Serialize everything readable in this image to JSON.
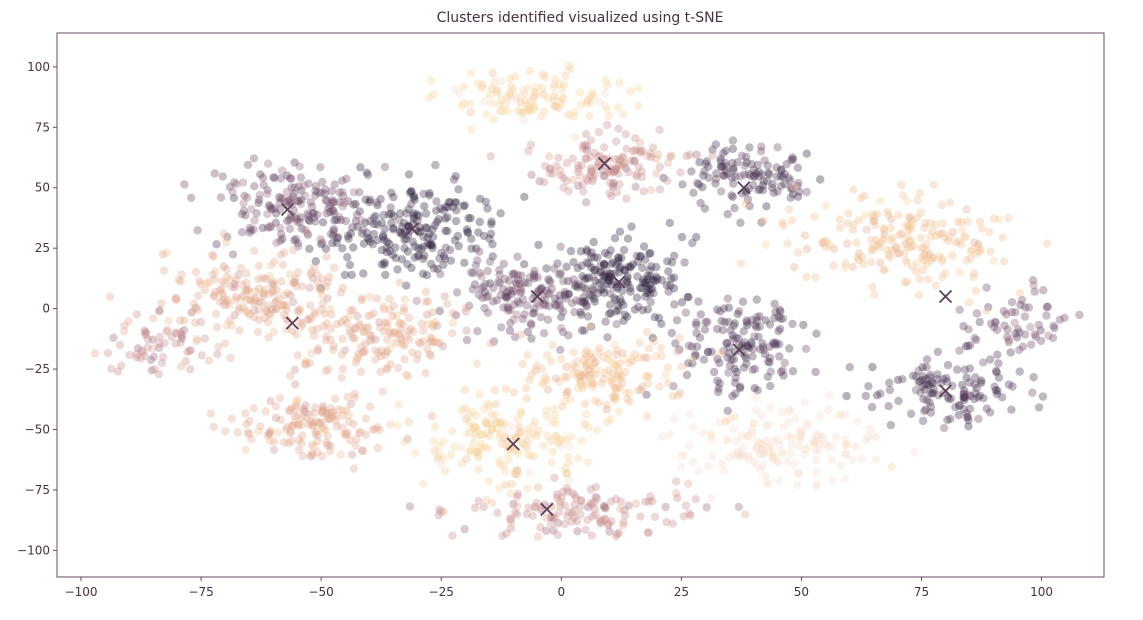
{
  "chart_data": {
    "type": "scatter",
    "title": "Clusters identified visualized using t-SNE",
    "xlabel": "",
    "ylabel": "",
    "xlim": [
      -105,
      113
    ],
    "ylim": [
      -111,
      114
    ],
    "xticks": [
      -100,
      -75,
      -50,
      -25,
      0,
      25,
      50,
      75,
      100
    ],
    "yticks": [
      100,
      75,
      50,
      25,
      0,
      -25,
      -50,
      -75,
      -100
    ],
    "xtick_labels": [
      "−100",
      "−75",
      "−50",
      "−25",
      "0",
      "25",
      "50",
      "75",
      "100"
    ],
    "ytick_labels": [
      "100",
      "75",
      "50",
      "25",
      "0",
      "−25",
      "−50",
      "−75",
      "−100"
    ],
    "grid": false,
    "legend": "none",
    "colors": {
      "axes": "#6b4a63",
      "text": "#4a2f45",
      "centroid_marker": "#5a4058",
      "palette": [
        "#2e1f3d",
        "#4b3152",
        "#6e4868",
        "#9b6b7f",
        "#c98f8c",
        "#e3a98b",
        "#f0c08f",
        "#f7d39c",
        "#f6dccd"
      ]
    },
    "point_alpha": 0.35,
    "clusters": [
      {
        "center": [
          -30,
          33
        ],
        "spread": [
          13,
          13
        ],
        "count": 220,
        "color": 0
      },
      {
        "center": [
          12,
          12
        ],
        "spread": [
          11,
          12
        ],
        "count": 200,
        "color": 0
      },
      {
        "center": [
          -56,
          42
        ],
        "spread": [
          11,
          12
        ],
        "count": 170,
        "color": 2
      },
      {
        "center": [
          -8,
          5
        ],
        "spread": [
          12,
          12
        ],
        "count": 150,
        "color": 2
      },
      {
        "center": [
          40,
          55
        ],
        "spread": [
          10,
          10
        ],
        "count": 120,
        "color": 1
      },
      {
        "center": [
          38,
          -15
        ],
        "spread": [
          9,
          14
        ],
        "count": 150,
        "color": 1
      },
      {
        "center": [
          80,
          -34
        ],
        "spread": [
          11,
          10
        ],
        "count": 130,
        "color": 1
      },
      {
        "center": [
          95,
          -5
        ],
        "spread": [
          8,
          10
        ],
        "count": 60,
        "color": 2
      },
      {
        "center": [
          -65,
          5
        ],
        "spread": [
          14,
          13
        ],
        "count": 200,
        "color": 5
      },
      {
        "center": [
          -38,
          -10
        ],
        "spread": [
          13,
          12
        ],
        "count": 170,
        "color": 5
      },
      {
        "center": [
          -52,
          -48
        ],
        "spread": [
          11,
          10
        ],
        "count": 150,
        "color": 5
      },
      {
        "center": [
          10,
          60
        ],
        "spread": [
          11,
          9
        ],
        "count": 140,
        "color": 4
      },
      {
        "center": [
          3,
          -83
        ],
        "spread": [
          16,
          8
        ],
        "count": 140,
        "color": 4
      },
      {
        "center": [
          -6,
          87
        ],
        "spread": [
          14,
          8
        ],
        "count": 120,
        "color": 7
      },
      {
        "center": [
          70,
          27
        ],
        "spread": [
          15,
          14
        ],
        "count": 200,
        "color": 6
      },
      {
        "center": [
          8,
          -27
        ],
        "spread": [
          12,
          10
        ],
        "count": 160,
        "color": 6
      },
      {
        "center": [
          -12,
          -55
        ],
        "spread": [
          14,
          11
        ],
        "count": 170,
        "color": 7
      },
      {
        "center": [
          45,
          -55
        ],
        "spread": [
          14,
          12
        ],
        "count": 150,
        "color": 8
      },
      {
        "center": [
          -83,
          -15
        ],
        "spread": [
          8,
          10
        ],
        "count": 60,
        "color": 4
      }
    ],
    "centroids": [
      [
        -57,
        41
      ],
      [
        -31,
        33
      ],
      [
        -56,
        -6
      ],
      [
        -5,
        5
      ],
      [
        12,
        11
      ],
      [
        38,
        50
      ],
      [
        37,
        -17
      ],
      [
        80,
        5
      ],
      [
        80,
        -34
      ],
      [
        -3,
        -83
      ],
      [
        9,
        60
      ],
      [
        -10,
        -56
      ]
    ]
  }
}
